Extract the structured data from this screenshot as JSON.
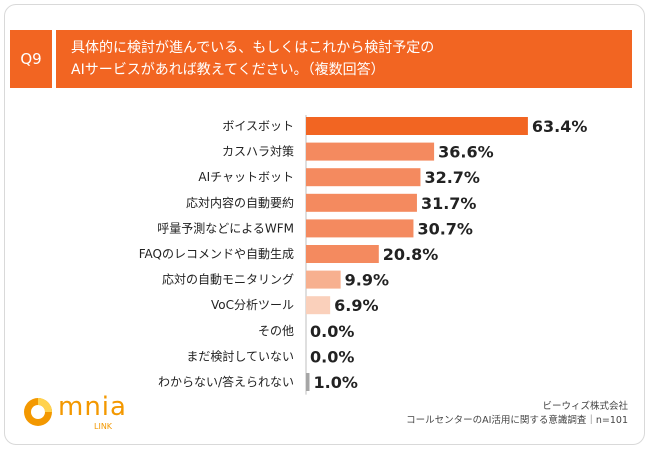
{
  "question": {
    "number": "Q9",
    "line1": "具体的に検討が進んでいる、もしくはこれから検討予定の",
    "line2": "AIサービスがあれば教えてください。（複数回答）"
  },
  "chart_data": {
    "type": "bar",
    "orientation": "horizontal",
    "categories": [
      "ボイスボット",
      "カスハラ対策",
      "AIチャットボット",
      "応対内容の自動要約",
      "呼量予測などによるWFM",
      "FAQのレコメンドや自動生成",
      "応対の自動モニタリング",
      "VoC分析ツール",
      "その他",
      "まだ検討していない",
      "わからない/答えられない"
    ],
    "values": [
      63.4,
      36.6,
      32.7,
      31.7,
      30.7,
      20.8,
      9.9,
      6.9,
      0.0,
      0.0,
      1.0
    ],
    "labels": [
      "63.4%",
      "36.6%",
      "32.7%",
      "31.7%",
      "30.7%",
      "20.8%",
      "9.9%",
      "6.9%",
      "0.0%",
      "0.0%",
      "1.0%"
    ],
    "xlim": [
      0,
      70
    ],
    "colors": {
      "top": "#f26522",
      "high": "#f48a5f",
      "mid": "#f7b08f",
      "low": "#fad0bb",
      "other": "#a6a6a6"
    }
  },
  "logo": {
    "text": "mnia",
    "sub": "LINK"
  },
  "source": {
    "company": "ビーウィズ株式会社",
    "survey": "コールセンターのAI活用に関する意識調査｜n=101"
  }
}
